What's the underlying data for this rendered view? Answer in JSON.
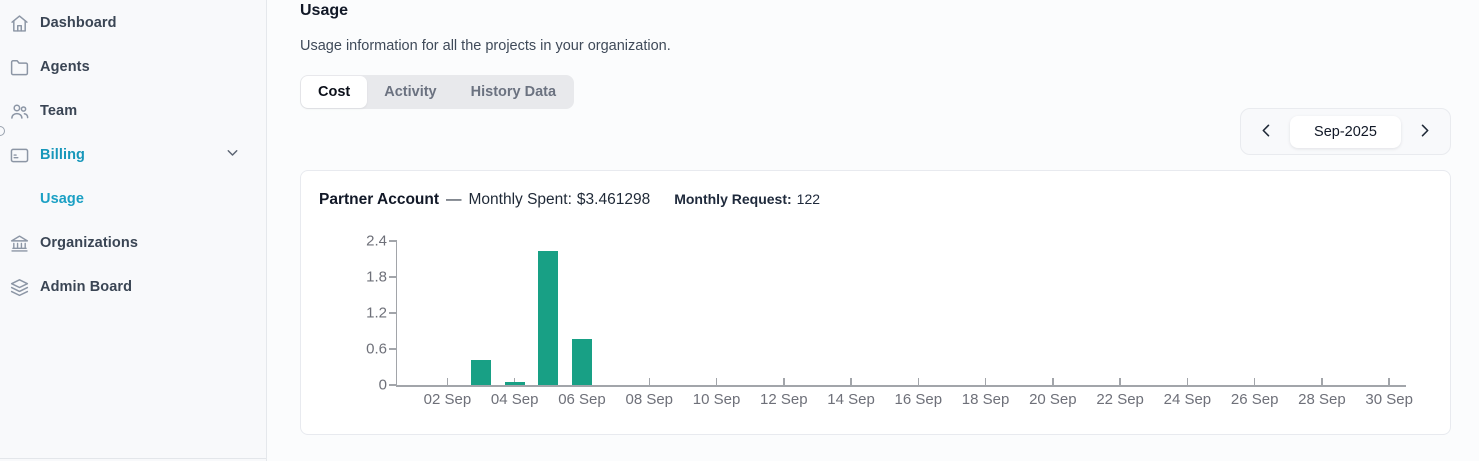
{
  "sidebar": {
    "items": [
      {
        "label": "Dashboard",
        "icon": "home-icon"
      },
      {
        "label": "Agents",
        "icon": "folder-icon"
      },
      {
        "label": "Team",
        "icon": "team-icon"
      },
      {
        "label": "Billing",
        "icon": "credit-card-icon",
        "active": true,
        "expanded": true
      },
      {
        "label": "Usage",
        "sub_item": true,
        "active": true
      },
      {
        "label": "Organizations",
        "icon": "bank-icon"
      },
      {
        "label": "Admin Board",
        "icon": "layers-icon"
      }
    ]
  },
  "header": {
    "title": "Usage",
    "subtitle": "Usage information for all the projects in your organization."
  },
  "tabs": [
    {
      "label": "Cost",
      "active": true
    },
    {
      "label": "Activity",
      "active": false
    },
    {
      "label": "History Data",
      "active": false
    }
  ],
  "month_nav": {
    "prev_icon": "chevron-left-icon",
    "next_icon": "chevron-right-icon",
    "current_month": "Sep-2025"
  },
  "card": {
    "account_name": "Partner Account",
    "separator": "—",
    "monthly_spent_label": "Monthly Spent:",
    "monthly_spent_value": "$3.461298",
    "monthly_request_label": "Monthly Request:",
    "monthly_request_value": "122"
  },
  "colors": {
    "accent_teal": "#1797ba",
    "bar_green": "#18A085",
    "axis": "#a2a5aa",
    "axis_label": "#6e7079"
  },
  "chart_data": {
    "type": "bar",
    "x": [
      "01 Sep",
      "02 Sep",
      "03 Sep",
      "04 Sep",
      "05 Sep",
      "06 Sep",
      "07 Sep",
      "08 Sep",
      "09 Sep",
      "10 Sep",
      "11 Sep",
      "12 Sep",
      "13 Sep",
      "14 Sep",
      "15 Sep",
      "16 Sep",
      "17 Sep",
      "18 Sep",
      "19 Sep",
      "20 Sep",
      "21 Sep",
      "22 Sep",
      "23 Sep",
      "24 Sep",
      "25 Sep",
      "26 Sep",
      "27 Sep",
      "28 Sep",
      "29 Sep",
      "30 Sep"
    ],
    "values": [
      0,
      0,
      0.41,
      0.05,
      2.24,
      0.76,
      0,
      0,
      0,
      0,
      0,
      0,
      0,
      0,
      0,
      0,
      0,
      0,
      0,
      0,
      0,
      0,
      0,
      0,
      0,
      0,
      0,
      0,
      0,
      0
    ],
    "x_tick_labels": [
      "02 Sep",
      "04 Sep",
      "06 Sep",
      "08 Sep",
      "10 Sep",
      "12 Sep",
      "14 Sep",
      "16 Sep",
      "18 Sep",
      "20 Sep",
      "22 Sep",
      "24 Sep",
      "26 Sep",
      "28 Sep",
      "30 Sep"
    ],
    "yticks": [
      0,
      0.6,
      1.2,
      1.8,
      2.4
    ],
    "ylim": [
      0,
      2.4
    ],
    "bar_color": "#18A085",
    "bar_width_ratio": 0.6,
    "grid": false,
    "legend": false,
    "series_name": "Partner Account"
  }
}
